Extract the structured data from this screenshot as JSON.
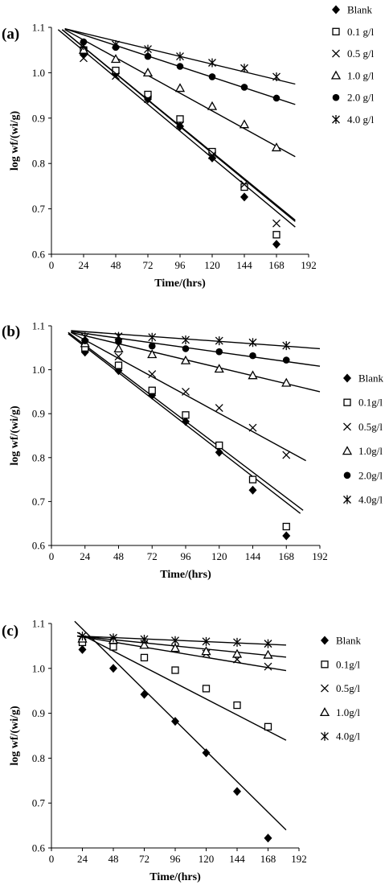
{
  "chart_data": [
    {
      "type": "scatter",
      "panel_label": "(a)",
      "xlabel": "Time/(hrs)",
      "ylabel": "log wf/(wi/g)",
      "xlim": [
        0,
        192
      ],
      "ylim": [
        0.6,
        1.1
      ],
      "x_ticks": [
        "0",
        "24",
        "48",
        "72",
        "96",
        "120",
        "144",
        "168",
        "192"
      ],
      "y_ticks": [
        "0.6",
        "0.7",
        "0.8",
        "0.9",
        "1.0",
        "1.1"
      ],
      "x": [
        24,
        48,
        72,
        96,
        120,
        144,
        168
      ],
      "legend_position": "right",
      "grid": false,
      "series": [
        {
          "name": "Blank",
          "marker": "diamond",
          "values": [
            1.04,
            0.998,
            0.942,
            0.882,
            0.812,
            0.726,
            0.622
          ],
          "fit": {
            "x": [
              5,
              182
            ],
            "y": [
              1.095,
              0.66
            ]
          }
        },
        {
          "name": "0.1 g/l",
          "marker": "square",
          "values": [
            1.05,
            1.005,
            0.952,
            0.898,
            0.826,
            0.748,
            0.643
          ],
          "fit": {
            "x": [
              8,
              182
            ],
            "y": [
              1.095,
              0.672
            ]
          }
        },
        {
          "name": "0.5 g/l",
          "marker": "x",
          "values": [
            1.032,
            0.993,
            0.942,
            0.884,
            0.818,
            0.754,
            0.668
          ],
          "fit": {
            "x": [
              8,
              182
            ],
            "y": [
              1.095,
              0.675
            ]
          }
        },
        {
          "name": "1.0 g/l",
          "marker": "triangle",
          "values": [
            1.05,
            1.03,
            1.0,
            0.966,
            0.926,
            0.886,
            0.835
          ],
          "fit": {
            "x": [
              10,
              182
            ],
            "y": [
              1.095,
              0.815
            ]
          }
        },
        {
          "name": "2.0 g/l",
          "marker": "circle",
          "values": [
            1.068,
            1.056,
            1.036,
            1.014,
            0.991,
            0.968,
            0.944
          ],
          "fit": {
            "x": [
              10,
              182
            ],
            "y": [
              1.097,
              0.93
            ]
          }
        },
        {
          "name": "4.0 g/l",
          "marker": "star",
          "values": [
            1.06,
            1.062,
            1.052,
            1.036,
            1.022,
            1.01,
            0.991
          ],
          "fit": {
            "x": [
              10,
              182
            ],
            "y": [
              1.097,
              0.975
            ]
          }
        }
      ]
    },
    {
      "type": "scatter",
      "panel_label": "(b)",
      "xlabel": "Time/(hrs)",
      "ylabel": "log wf/(wi/g)",
      "xlim": [
        0,
        192
      ],
      "ylim": [
        0.6,
        1.1
      ],
      "x_ticks": [
        "0",
        "24",
        "48",
        "72",
        "96",
        "120",
        "144",
        "168",
        "192"
      ],
      "y_ticks": [
        "0.6",
        "0.7",
        "0.8",
        "0.9",
        "1.0",
        "1.1"
      ],
      "x": [
        24,
        48,
        72,
        96,
        120,
        144,
        168
      ],
      "legend_position": "right",
      "grid": false,
      "series": [
        {
          "name": "Blank",
          "marker": "diamond",
          "values": [
            1.04,
            0.998,
            0.942,
            0.882,
            0.812,
            0.726,
            0.622
          ],
          "fit": {
            "x": [
              12,
              178
            ],
            "y": [
              1.082,
              0.673
            ]
          }
        },
        {
          "name": "0.1g/l",
          "marker": "square",
          "values": [
            1.05,
            1.01,
            0.953,
            0.897,
            0.828,
            0.75,
            0.643
          ],
          "fit": {
            "x": [
              12,
              180
            ],
            "y": [
              1.085,
              0.68
            ]
          }
        },
        {
          "name": "0.5g/l",
          "marker": "x",
          "values": [
            1.06,
            1.03,
            0.99,
            0.95,
            0.913,
            0.868,
            0.806
          ],
          "fit": {
            "x": [
              14,
              182
            ],
            "y": [
              1.085,
              0.793
            ]
          }
        },
        {
          "name": "1.0g/l",
          "marker": "triangle",
          "values": [
            1.06,
            1.048,
            1.035,
            1.021,
            1.002,
            0.987,
            0.97
          ],
          "fit": {
            "x": [
              14,
              192
            ],
            "y": [
              1.085,
              0.95
            ]
          }
        },
        {
          "name": "2.0g/l",
          "marker": "circle",
          "values": [
            1.066,
            1.064,
            1.054,
            1.048,
            1.041,
            1.032,
            1.022
          ],
          "fit": {
            "x": [
              14,
              192
            ],
            "y": [
              1.087,
              1.008
            ]
          }
        },
        {
          "name": "4.0g/l",
          "marker": "star",
          "values": [
            1.075,
            1.076,
            1.074,
            1.068,
            1.066,
            1.062,
            1.055
          ],
          "fit": {
            "x": [
              14,
              192
            ],
            "y": [
              1.089,
              1.048
            ]
          }
        }
      ]
    },
    {
      "type": "scatter",
      "panel_label": "(c)",
      "xlabel": "Time/(hrs)",
      "ylabel": "log wf/(wi/g)",
      "xlim": [
        0,
        192
      ],
      "ylim": [
        0.6,
        1.1
      ],
      "x_ticks": [
        "0",
        "24",
        "48",
        "72",
        "96",
        "120",
        "144",
        "168",
        "192"
      ],
      "y_ticks": [
        "0.6",
        "0.7",
        "0.8",
        "0.9",
        "1.0",
        "1.1"
      ],
      "x": [
        24,
        48,
        72,
        96,
        120,
        144,
        168
      ],
      "legend_position": "right",
      "grid": false,
      "series": [
        {
          "name": "Blank",
          "marker": "diamond",
          "values": [
            1.042,
            1.0,
            0.942,
            0.882,
            0.812,
            0.726,
            0.622
          ],
          "fit": {
            "x": [
              18,
              182
            ],
            "y": [
              1.105,
              0.64
            ]
          }
        },
        {
          "name": "0.1g/l",
          "marker": "square",
          "values": [
            1.058,
            1.048,
            1.024,
            0.996,
            0.955,
            0.918,
            0.87
          ],
          "fit": {
            "x": [
              20,
              182
            ],
            "y": [
              1.08,
              0.84
            ]
          }
        },
        {
          "name": "0.5g/l",
          "marker": "x",
          "values": [
            1.065,
            1.062,
            1.055,
            1.045,
            1.033,
            1.02,
            1.004
          ],
          "fit": {
            "x": [
              20,
              182
            ],
            "y": [
              1.072,
              0.995
            ]
          }
        },
        {
          "name": "1.0g/l",
          "marker": "triangle",
          "values": [
            1.066,
            1.063,
            1.052,
            1.045,
            1.038,
            1.032,
            1.03
          ],
          "fit": {
            "x": [
              20,
              182
            ],
            "y": [
              1.072,
              1.025
            ]
          }
        },
        {
          "name": "4.0g/l",
          "marker": "star",
          "values": [
            1.072,
            1.068,
            1.065,
            1.062,
            1.06,
            1.058,
            1.055
          ],
          "fit": {
            "x": [
              20,
              182
            ],
            "y": [
              1.072,
              1.052
            ]
          }
        }
      ]
    }
  ]
}
